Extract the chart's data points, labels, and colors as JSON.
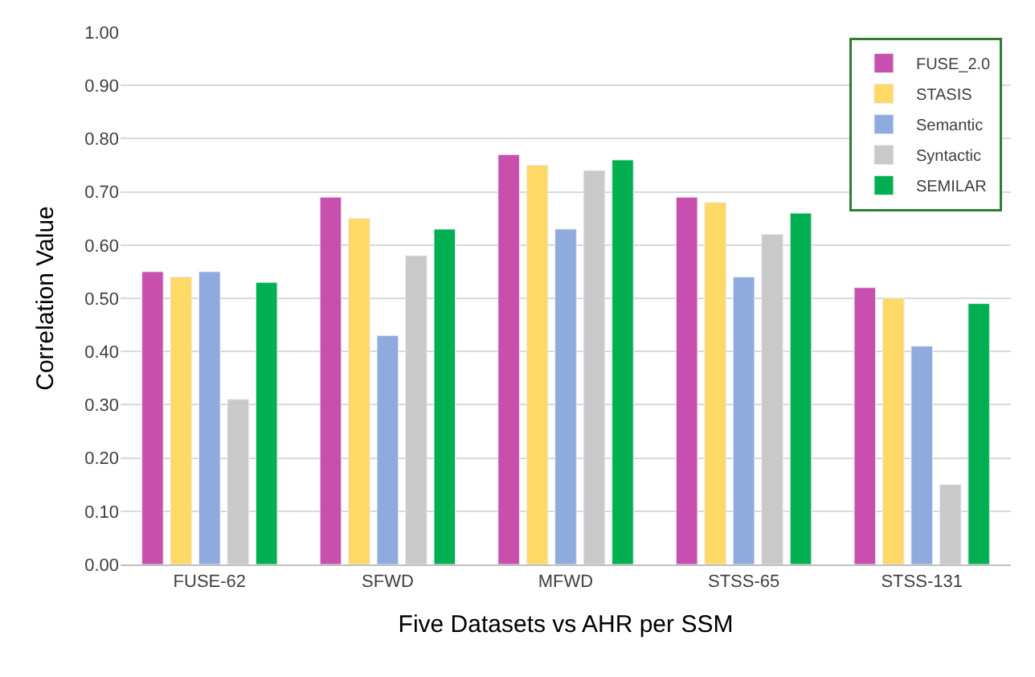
{
  "chart_data": {
    "type": "bar",
    "xlabel": "Five Datasets vs AHR per SSM",
    "ylabel": "Correlation Value",
    "categories": [
      "FUSE-62",
      "SFWD",
      "MFWD",
      "STSS-65",
      "STSS-131"
    ],
    "series": [
      {
        "name": "FUSE_2.0",
        "color": "#c94fae",
        "values": [
          0.55,
          0.69,
          0.77,
          0.69,
          0.52
        ]
      },
      {
        "name": "STASIS",
        "color": "#ffd966",
        "values": [
          0.54,
          0.65,
          0.75,
          0.68,
          0.5
        ]
      },
      {
        "name": "Semantic",
        "color": "#8faadc",
        "values": [
          0.55,
          0.43,
          0.63,
          0.54,
          0.41
        ]
      },
      {
        "name": "Syntactic",
        "color": "#c9c9c9",
        "values": [
          0.31,
          0.58,
          0.74,
          0.62,
          0.15
        ]
      },
      {
        "name": "SEMILAR",
        "color": "#00b050",
        "values": [
          0.53,
          0.63,
          0.76,
          0.66,
          0.49
        ]
      }
    ],
    "ylim": [
      0,
      1
    ],
    "yticks": [
      {
        "value": 0,
        "label": "0.00"
      },
      {
        "value": 0.1,
        "label": "0.10"
      },
      {
        "value": 0.2,
        "label": "0.20"
      },
      {
        "value": 0.3,
        "label": "0.30"
      },
      {
        "value": 0.4,
        "label": "0.40"
      },
      {
        "value": 0.5,
        "label": "0.50"
      },
      {
        "value": 0.6,
        "label": "0.60"
      },
      {
        "value": 0.7,
        "label": "0.70"
      },
      {
        "value": 0.8,
        "label": "0.80"
      },
      {
        "value": 0.9,
        "label": "0.90"
      },
      {
        "value": 1,
        "label": "1.00"
      }
    ],
    "grid": "y",
    "legend": "top right"
  }
}
